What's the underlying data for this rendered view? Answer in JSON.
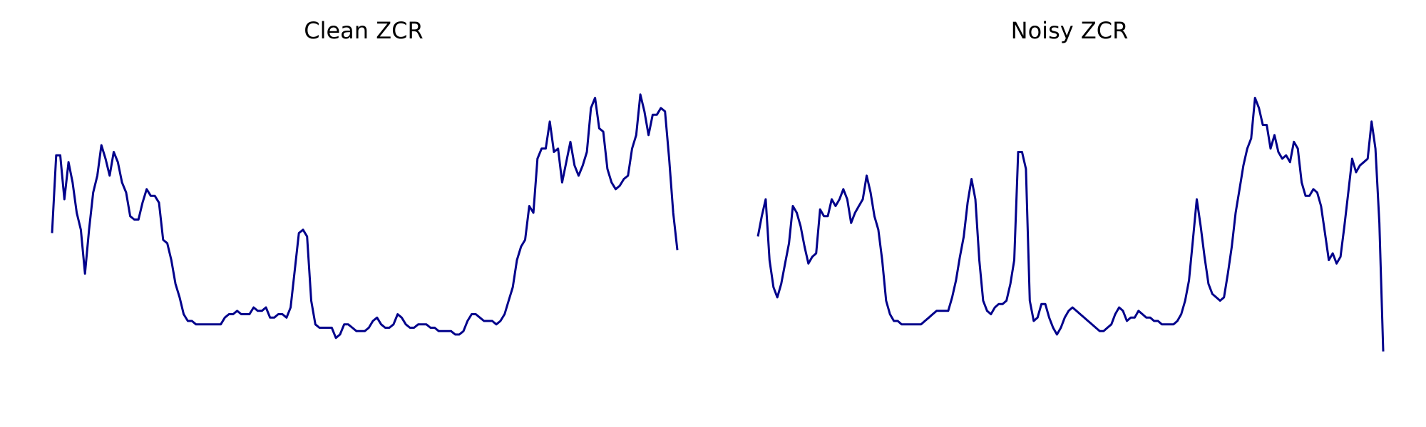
{
  "chart_data": [
    {
      "type": "line",
      "title": "Clean ZCR",
      "xlabel": "",
      "ylabel": "",
      "axes_visible": false,
      "grid": false,
      "color": "#00008B",
      "ylim": [
        0,
        1
      ],
      "values": [
        0.5,
        0.73,
        0.73,
        0.6,
        0.71,
        0.65,
        0.56,
        0.51,
        0.38,
        0.51,
        0.62,
        0.67,
        0.76,
        0.72,
        0.67,
        0.74,
        0.71,
        0.65,
        0.62,
        0.55,
        0.54,
        0.54,
        0.59,
        0.63,
        0.61,
        0.61,
        0.59,
        0.48,
        0.47,
        0.42,
        0.35,
        0.31,
        0.26,
        0.24,
        0.24,
        0.23,
        0.23,
        0.23,
        0.23,
        0.23,
        0.23,
        0.23,
        0.25,
        0.26,
        0.26,
        0.27,
        0.26,
        0.26,
        0.26,
        0.28,
        0.27,
        0.27,
        0.28,
        0.25,
        0.25,
        0.26,
        0.26,
        0.25,
        0.28,
        0.39,
        0.5,
        0.51,
        0.49,
        0.3,
        0.23,
        0.22,
        0.22,
        0.22,
        0.22,
        0.19,
        0.2,
        0.23,
        0.23,
        0.22,
        0.21,
        0.21,
        0.21,
        0.22,
        0.24,
        0.25,
        0.23,
        0.22,
        0.22,
        0.23,
        0.26,
        0.25,
        0.23,
        0.22,
        0.22,
        0.23,
        0.23,
        0.23,
        0.22,
        0.22,
        0.21,
        0.21,
        0.21,
        0.21,
        0.2,
        0.2,
        0.21,
        0.24,
        0.26,
        0.26,
        0.25,
        0.24,
        0.24,
        0.24,
        0.23,
        0.24,
        0.26,
        0.3,
        0.34,
        0.42,
        0.46,
        0.48,
        0.58,
        0.56,
        0.72,
        0.75,
        0.75,
        0.83,
        0.74,
        0.75,
        0.65,
        0.71,
        0.77,
        0.7,
        0.67,
        0.7,
        0.74,
        0.87,
        0.9,
        0.81,
        0.8,
        0.69,
        0.65,
        0.63,
        0.64,
        0.66,
        0.67,
        0.75,
        0.79,
        0.91,
        0.86,
        0.79,
        0.85,
        0.85,
        0.87,
        0.86,
        0.72,
        0.56,
        0.45
      ]
    },
    {
      "type": "line",
      "title": "Noisy ZCR",
      "xlabel": "",
      "ylabel": "",
      "axes_visible": false,
      "grid": false,
      "color": "#00008B",
      "ylim": [
        0,
        1
      ],
      "values": [
        0.49,
        0.55,
        0.6,
        0.42,
        0.34,
        0.31,
        0.35,
        0.41,
        0.47,
        0.58,
        0.56,
        0.52,
        0.46,
        0.41,
        0.43,
        0.44,
        0.57,
        0.55,
        0.55,
        0.6,
        0.58,
        0.6,
        0.63,
        0.6,
        0.53,
        0.56,
        0.58,
        0.6,
        0.67,
        0.62,
        0.55,
        0.51,
        0.42,
        0.3,
        0.26,
        0.24,
        0.24,
        0.23,
        0.23,
        0.23,
        0.23,
        0.23,
        0.23,
        0.24,
        0.25,
        0.26,
        0.27,
        0.27,
        0.27,
        0.27,
        0.31,
        0.36,
        0.43,
        0.49,
        0.59,
        0.66,
        0.6,
        0.42,
        0.3,
        0.27,
        0.26,
        0.28,
        0.29,
        0.29,
        0.3,
        0.35,
        0.42,
        0.74,
        0.74,
        0.69,
        0.3,
        0.24,
        0.25,
        0.29,
        0.29,
        0.25,
        0.22,
        0.2,
        0.22,
        0.25,
        0.27,
        0.28,
        0.27,
        0.26,
        0.25,
        0.24,
        0.23,
        0.22,
        0.21,
        0.21,
        0.22,
        0.23,
        0.26,
        0.28,
        0.27,
        0.24,
        0.25,
        0.25,
        0.27,
        0.26,
        0.25,
        0.25,
        0.24,
        0.24,
        0.23,
        0.23,
        0.23,
        0.23,
        0.24,
        0.26,
        0.3,
        0.36,
        0.48,
        0.6,
        0.52,
        0.43,
        0.35,
        0.32,
        0.31,
        0.3,
        0.31,
        0.38,
        0.46,
        0.56,
        0.63,
        0.7,
        0.75,
        0.78,
        0.9,
        0.87,
        0.82,
        0.82,
        0.75,
        0.79,
        0.74,
        0.72,
        0.73,
        0.71,
        0.77,
        0.75,
        0.65,
        0.61,
        0.61,
        0.63,
        0.62,
        0.58,
        0.5,
        0.42,
        0.44,
        0.41,
        0.43,
        0.52,
        0.62,
        0.72,
        0.68,
        0.7,
        0.71,
        0.72,
        0.83,
        0.75,
        0.53,
        0.15
      ]
    }
  ]
}
